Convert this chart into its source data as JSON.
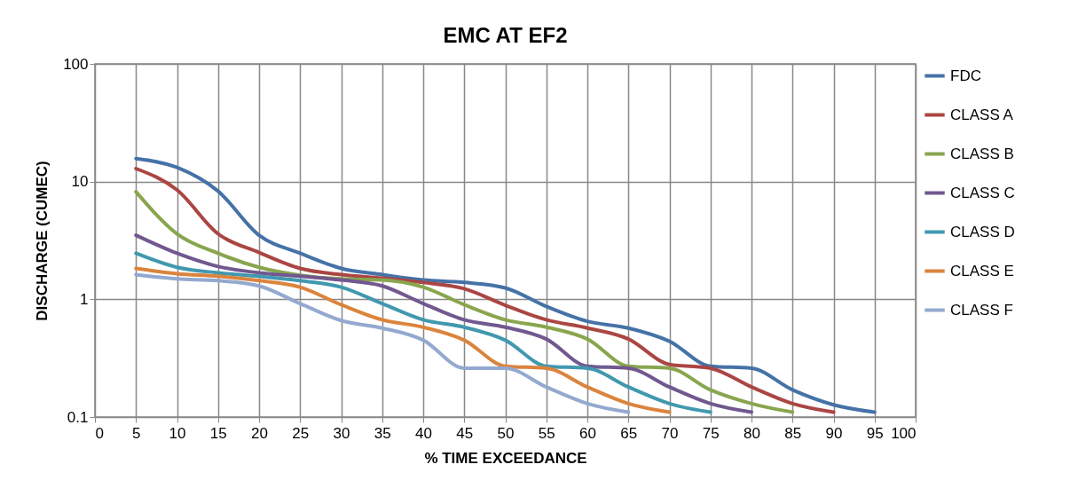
{
  "chart_data": {
    "type": "line",
    "title": "EMC AT EF2",
    "xlabel": "% TIME EXCEEDANCE",
    "ylabel": "DISCHARGE (CUMEC)",
    "x": [
      5,
      10,
      15,
      20,
      25,
      30,
      35,
      40,
      45,
      50,
      55,
      60,
      65,
      70,
      75,
      80,
      85,
      90,
      95
    ],
    "series": [
      {
        "name": "FDC",
        "color": "#4572a7",
        "values": [
          15.7,
          13.2,
          8.3,
          3.5,
          2.46,
          1.83,
          1.62,
          1.46,
          1.39,
          1.25,
          0.87,
          0.65,
          0.57,
          0.44,
          0.27,
          0.26,
          0.17,
          0.127,
          0.11
        ]
      },
      {
        "name": "CLASS A",
        "color": "#aa4643",
        "values": [
          12.9,
          8.5,
          3.6,
          2.5,
          1.83,
          1.62,
          1.51,
          1.39,
          1.23,
          0.89,
          0.67,
          0.57,
          0.46,
          0.28,
          0.26,
          0.18,
          0.13,
          0.11,
          null
        ]
      },
      {
        "name": "CLASS B",
        "color": "#89a54e",
        "values": [
          8.2,
          3.6,
          2.46,
          1.87,
          1.6,
          1.49,
          1.46,
          1.27,
          0.9,
          0.67,
          0.58,
          0.46,
          0.27,
          0.26,
          0.17,
          0.13,
          0.11,
          null,
          null
        ]
      },
      {
        "name": "CLASS C",
        "color": "#71588f",
        "values": [
          3.5,
          2.46,
          1.9,
          1.68,
          1.57,
          1.46,
          1.3,
          0.92,
          0.67,
          0.58,
          0.46,
          0.27,
          0.26,
          0.18,
          0.13,
          0.11,
          null,
          null,
          null
        ]
      },
      {
        "name": "CLASS D",
        "color": "#4198af",
        "values": [
          2.46,
          1.87,
          1.68,
          1.57,
          1.44,
          1.27,
          0.92,
          0.67,
          0.58,
          0.45,
          0.27,
          0.26,
          0.18,
          0.13,
          0.11,
          null,
          null,
          null,
          null
        ]
      },
      {
        "name": "CLASS E",
        "color": "#db843d",
        "values": [
          1.83,
          1.65,
          1.57,
          1.44,
          1.27,
          0.9,
          0.67,
          0.58,
          0.45,
          0.27,
          0.26,
          0.18,
          0.13,
          0.11,
          null,
          null,
          null,
          null,
          null
        ]
      },
      {
        "name": "CLASS F",
        "color": "#93a9cf",
        "values": [
          1.62,
          1.49,
          1.44,
          1.3,
          0.92,
          0.66,
          0.57,
          0.45,
          0.26,
          0.26,
          0.18,
          0.13,
          0.11,
          null,
          null,
          null,
          null,
          null,
          null
        ]
      }
    ],
    "xlim": [
      0,
      100
    ],
    "xticks": [
      0,
      5,
      10,
      15,
      20,
      25,
      30,
      35,
      40,
      45,
      50,
      55,
      60,
      65,
      70,
      75,
      80,
      85,
      90,
      95,
      100
    ],
    "ylim": [
      0.1,
      100
    ],
    "yticks": [
      0.1,
      1,
      10,
      100
    ],
    "log": true,
    "grid": true,
    "legend": "right",
    "marker": "none",
    "line_style": "solid"
  }
}
